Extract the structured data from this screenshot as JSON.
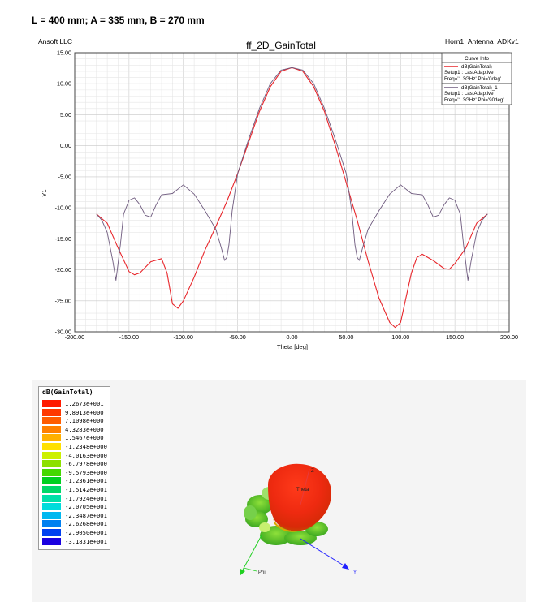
{
  "heading": "L = 400 mm; A = 335 mm,  B = 270 mm",
  "chart_data": {
    "type": "line",
    "title": "ff_2D_GainTotal",
    "corner_left": "Ansoft LLC",
    "corner_right": "Horn1_Antenna_ADKv1",
    "xlabel": "Theta [deg]",
    "ylabel": "Y1",
    "xlim": [
      -200,
      200
    ],
    "ylim": [
      -30,
      15
    ],
    "x_ticks": [
      "-200.00",
      "-150.00",
      "-100.00",
      "-50.00",
      "0.00",
      "50.00",
      "100.00",
      "150.00",
      "200.00"
    ],
    "y_ticks": [
      "15.00",
      "10.00",
      "5.00",
      "0.00",
      "-5.00",
      "-10.00",
      "-15.00",
      "-20.00",
      "-25.00",
      "-30.00"
    ],
    "grid": true,
    "legend_title": "Curve Info",
    "legend_placement": "top-right",
    "series": [
      {
        "name": "dB(GainTotal)",
        "sub1": "Setup1 : LastAdaptive",
        "sub2": "Freq='1.3GHz' Phi='0deg'",
        "color": "#e8262b",
        "x": [
          -180,
          -170,
          -160,
          -150,
          -145,
          -140,
          -130,
          -120,
          -115,
          -110,
          -105,
          -100,
          -90,
          -80,
          -70,
          -60,
          -50,
          -40,
          -30,
          -20,
          -10,
          0,
          10,
          20,
          30,
          40,
          50,
          60,
          70,
          80,
          90,
          95,
          100,
          105,
          110,
          115,
          120,
          130,
          140,
          145,
          150,
          160,
          170,
          180
        ],
        "y": [
          -11,
          -12.5,
          -16.5,
          -20.3,
          -20.8,
          -20.5,
          -18.7,
          -18.2,
          -20.5,
          -25.5,
          -26.2,
          -25,
          -21.2,
          -16.8,
          -13,
          -9,
          -4.5,
          0.5,
          5.5,
          9.5,
          12,
          12.6,
          12,
          9.5,
          5.5,
          0,
          -6,
          -12,
          -18.5,
          -24.5,
          -28.5,
          -29.3,
          -28.5,
          -24.5,
          -20.5,
          -18,
          -17.5,
          -18.5,
          -19.8,
          -19.9,
          -19,
          -16.5,
          -12.5,
          -11
        ]
      },
      {
        "name": "dB(GainTotal)_1",
        "sub1": "Setup1 : LastAdaptive",
        "sub2": "Freq='1.3GHz' Phi='90deg'",
        "color": "#6e5a7e",
        "x": [
          -180,
          -175,
          -170,
          -165,
          -162,
          -158,
          -155,
          -150,
          -145,
          -140,
          -135,
          -130,
          -125,
          -120,
          -110,
          -100,
          -90,
          -80,
          -70,
          -65,
          -62,
          -60,
          -58,
          -55,
          -50,
          -40,
          -30,
          -20,
          -10,
          0,
          10,
          20,
          30,
          40,
          50,
          55,
          58,
          60,
          62,
          65,
          70,
          80,
          90,
          100,
          110,
          120,
          125,
          130,
          135,
          140,
          145,
          150,
          155,
          158,
          162,
          165,
          170,
          175,
          180
        ],
        "y": [
          -11,
          -12,
          -14,
          -18.5,
          -21.7,
          -16,
          -11,
          -8.8,
          -8.4,
          -9.5,
          -11.2,
          -11.5,
          -9.5,
          -7.9,
          -7.7,
          -6.3,
          -7.8,
          -10.5,
          -13.5,
          -16.5,
          -18.5,
          -18,
          -16,
          -10.5,
          -4.5,
          1,
          6,
          10,
          12.2,
          12.6,
          12.2,
          10,
          6,
          1,
          -4.5,
          -10.5,
          -16,
          -18,
          -18.5,
          -16.5,
          -13.5,
          -10.5,
          -7.8,
          -6.3,
          -7.7,
          -7.9,
          -9.5,
          -11.5,
          -11.2,
          -9.5,
          -8.4,
          -8.8,
          -11,
          -16,
          -21.7,
          -18.5,
          -14,
          -12,
          -11
        ]
      }
    ]
  },
  "pattern_view": {
    "legend_title": "dB(GainTotal)",
    "scale": [
      {
        "label": "1.2673e+001",
        "color": "#ff1a00"
      },
      {
        "label": "9.8913e+000",
        "color": "#ff3800"
      },
      {
        "label": "7.1098e+000",
        "color": "#ff5c00"
      },
      {
        "label": "4.3283e+000",
        "color": "#ff8000"
      },
      {
        "label": "1.5467e+000",
        "color": "#ffb000"
      },
      {
        "label": "-1.2348e+000",
        "color": "#ffe000"
      },
      {
        "label": "-4.0163e+000",
        "color": "#ccf000"
      },
      {
        "label": "-6.7978e+000",
        "color": "#8ce000"
      },
      {
        "label": "-9.5793e+000",
        "color": "#44d800"
      },
      {
        "label": "-1.2361e+001",
        "color": "#00d020"
      },
      {
        "label": "-1.5142e+001",
        "color": "#00d868"
      },
      {
        "label": "-1.7924e+001",
        "color": "#00e0a8"
      },
      {
        "label": "-2.0705e+001",
        "color": "#00dcdc"
      },
      {
        "label": "-2.3487e+001",
        "color": "#00b8f0"
      },
      {
        "label": "-2.6268e+001",
        "color": "#0080f0"
      },
      {
        "label": "-2.9050e+001",
        "color": "#0040f0"
      },
      {
        "label": "-3.1831e+001",
        "color": "#1a00e0"
      }
    ],
    "axis_z": "Z",
    "axis_y": "Y",
    "axis_phi": "Phi",
    "theta_label": "Theta"
  }
}
